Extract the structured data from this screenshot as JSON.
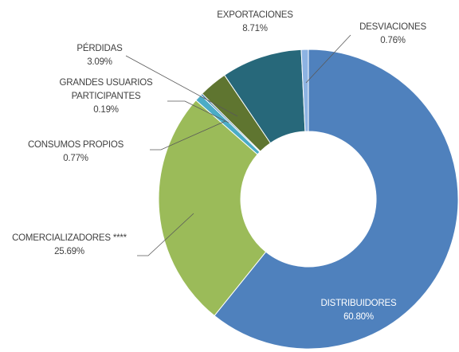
{
  "chart_data": {
    "type": "donut",
    "categories": [
      "DISTRIBUIDORES",
      "COMERCIALIZADORES ****",
      "CONSUMOS PROPIOS",
      "GRANDES USUARIOS PARTICIPANTES",
      "PÉRDIDAS",
      "EXPORTACIONES",
      "DESVIACIONES"
    ],
    "values": [
      60.8,
      25.69,
      0.77,
      0.19,
      3.09,
      8.71,
      0.76
    ],
    "value_labels": [
      "60.80%",
      "25.69%",
      "0.77%",
      "0.19%",
      "3.09%",
      "8.71%",
      "0.76%"
    ],
    "colors": [
      "#4f81bd",
      "#9bbb59",
      "#4bacc6",
      "#2e6f9e",
      "#5f7530",
      "#27687a",
      "#8db3e2"
    ]
  }
}
